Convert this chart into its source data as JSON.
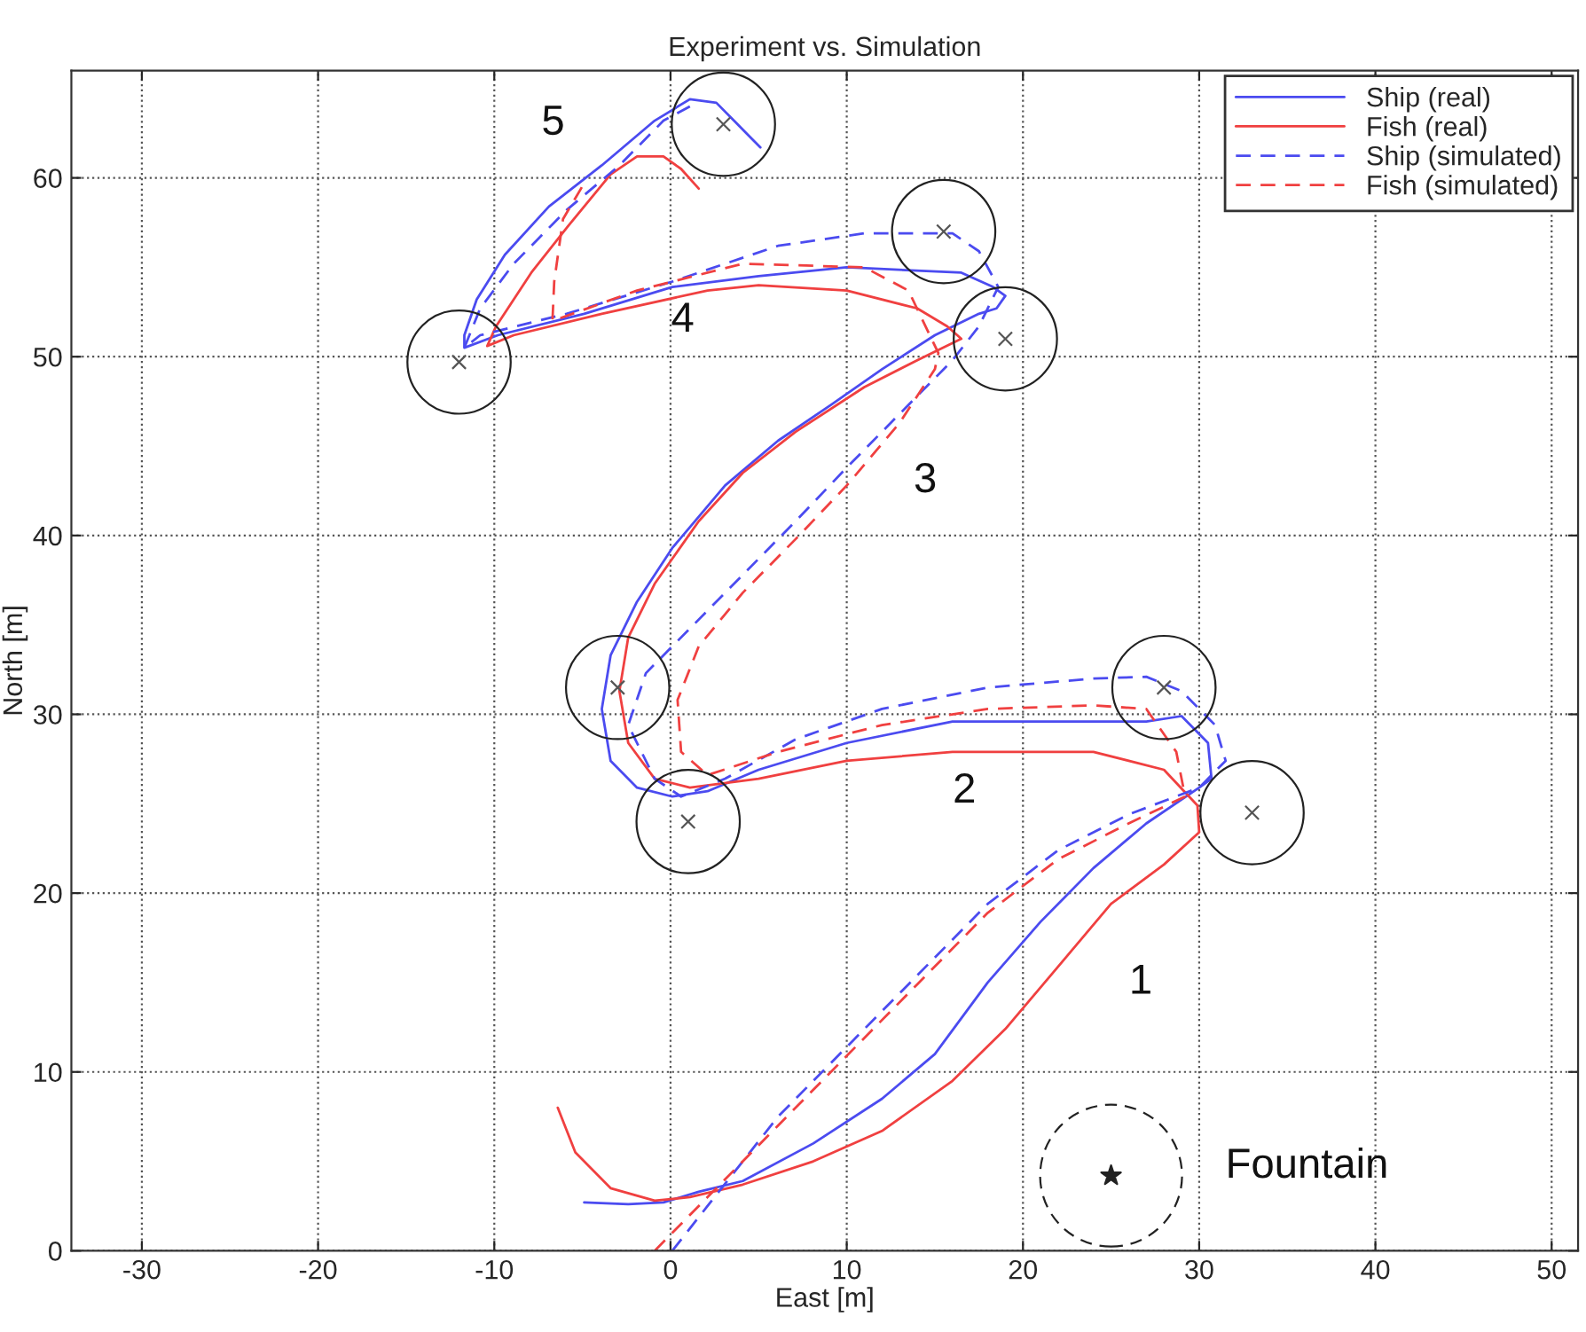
{
  "chart_data": {
    "type": "line",
    "title": "Experiment vs. Simulation",
    "xlabel": "East [m]",
    "ylabel": "North [m]",
    "xlim": [
      -34,
      51.5
    ],
    "ylim": [
      0,
      66
    ],
    "xticks": [
      -30,
      -20,
      -10,
      0,
      10,
      20,
      30,
      40,
      50
    ],
    "yticks": [
      0,
      10,
      20,
      30,
      40,
      50,
      60
    ],
    "grid": true,
    "legend": "top right",
    "series": [
      {
        "name": "Ship (real)",
        "color": "#4b4bf0",
        "line_style": "solid",
        "x": [
          -4.9,
          -2.4,
          -0.4,
          1.6,
          4.1,
          8.1,
          12,
          15,
          18,
          21,
          24,
          27,
          30,
          30.7,
          30.5,
          29,
          27,
          16,
          10,
          5,
          2.1,
          0.1,
          -1.9,
          -3.4,
          -3.9,
          -3.4,
          -1.9,
          0.1,
          3.1,
          6.1,
          9.1,
          12,
          15,
          17.5,
          18.5,
          19,
          18.3,
          16.5,
          10,
          5,
          0.1,
          -4.9,
          -9.8,
          -11.7,
          -11.7,
          -11,
          -9.4,
          -6.9,
          -3.9,
          -0.9,
          1.1,
          2.6,
          3.6,
          4.6,
          5.1
        ],
        "values": [
          2.7,
          2.6,
          2.7,
          3.3,
          3.9,
          6,
          8.5,
          11,
          15,
          18.4,
          21.4,
          23.9,
          25.9,
          26.4,
          28.4,
          29.9,
          29.6,
          29.6,
          28.4,
          26.9,
          25.7,
          25.4,
          25.9,
          27.4,
          30.3,
          33.3,
          36.3,
          39.3,
          42.8,
          45.3,
          47.3,
          49.3,
          51.2,
          52.4,
          52.7,
          53.4,
          53.9,
          54.7,
          55,
          54.5,
          53.9,
          52.4,
          51.2,
          50.5,
          51.2,
          53.2,
          55.7,
          58.4,
          60.7,
          63.2,
          64.4,
          64.2,
          63.2,
          62.2,
          61.7
        ]
      },
      {
        "name": "Fish (real)",
        "color": "#f04040",
        "line_style": "solid",
        "x": [
          -6.4,
          -5.4,
          -3.4,
          -0.9,
          1.1,
          4.1,
          8.1,
          12,
          16,
          19,
          22,
          25,
          28,
          30,
          29.9,
          28,
          24,
          16,
          10,
          5,
          1.1,
          -0.9,
          -2.4,
          -2.9,
          -2.4,
          -0.9,
          1.6,
          4.1,
          7.1,
          11,
          14,
          16.5,
          15.7,
          14,
          10,
          5,
          2.1,
          -3.9,
          -8.9,
          -10.4,
          -9.9,
          -7.9,
          -5.9,
          -3.4,
          -1.9,
          -0.4,
          0.6,
          1.6
        ],
        "values": [
          8,
          5.5,
          3.5,
          2.8,
          3,
          3.7,
          5,
          6.7,
          9.5,
          12.4,
          15.9,
          19.4,
          21.6,
          23.4,
          24.9,
          26.9,
          27.9,
          27.9,
          27.4,
          26.4,
          25.9,
          26.4,
          28.4,
          31.3,
          34.3,
          37.3,
          40.8,
          43.5,
          45.8,
          48.3,
          49.8,
          51,
          51.7,
          52.7,
          53.7,
          54,
          53.7,
          52.4,
          51.2,
          50.6,
          51.7,
          54.7,
          57.2,
          60.2,
          61.2,
          61.2,
          60.5,
          59.4
        ]
      },
      {
        "name": "Ship (simulated)",
        "color": "#4b4bf0",
        "line_style": "dashed",
        "x": [
          0.1,
          2.1,
          6.1,
          10,
          14,
          18,
          22,
          26,
          30,
          31.5,
          30.9,
          29,
          27,
          24,
          18,
          12,
          7.1,
          3.1,
          0.6,
          -0.9,
          -2.4,
          -1.4,
          1.1,
          4.1,
          7.1,
          10,
          13,
          16,
          17.5,
          18.6,
          17.5,
          16,
          15,
          11,
          6.1,
          0.1,
          -5.9,
          -10.8,
          -11.7,
          -10.8,
          -8.9,
          -5.9,
          -2.9,
          -0.4,
          1.1
        ],
        "values": [
          0,
          2.5,
          7.5,
          11.4,
          15.4,
          19.4,
          22.4,
          24.4,
          25.9,
          27.4,
          29.4,
          31.3,
          32.1,
          32,
          31.5,
          30.3,
          28.6,
          26.4,
          25.4,
          26.4,
          29.4,
          32.3,
          34.8,
          37.8,
          40.8,
          43.8,
          46.8,
          49.8,
          51.7,
          53.9,
          55.9,
          56.9,
          56.9,
          56.9,
          56.2,
          54.2,
          52.4,
          51.2,
          50.5,
          52.7,
          55.2,
          58.2,
          60.7,
          63.2,
          64
        ]
      },
      {
        "name": "Fish (simulated)",
        "color": "#f04040",
        "line_style": "dashed",
        "x": [
          -0.9,
          1.6,
          6.1,
          10,
          14,
          18,
          22,
          26,
          29.2,
          28.7,
          27,
          24,
          18,
          12,
          6.1,
          2.1,
          0.6,
          0.4,
          1.6,
          4.1,
          7.1,
          10,
          13,
          15,
          15.2,
          13.5,
          11,
          4.1,
          -1.9,
          -6.7,
          -6.6,
          -6.1,
          -4.9
        ],
        "values": [
          0,
          2.5,
          7,
          10.9,
          14.9,
          18.9,
          21.9,
          23.9,
          25.4,
          27.9,
          30.3,
          30.5,
          30.3,
          29.4,
          27.9,
          26.6,
          27.9,
          30.8,
          33.8,
          36.8,
          39.8,
          42.8,
          46.3,
          49.3,
          50.2,
          53.7,
          55,
          55.2,
          53.7,
          52,
          54.2,
          57.7,
          59.7
        ]
      },
      {
        "type": "bubble",
        "color": "#222222",
        "line_style": "solid",
        "x": [
          33,
          28,
          1,
          -3,
          19,
          15.5,
          -12,
          3
        ],
        "values": [
          24.5,
          31.5,
          24,
          31.5,
          51,
          57,
          49.7,
          63
        ],
        "sizes": [
          1,
          1,
          1,
          1,
          1,
          1,
          1,
          1
        ]
      },
      {
        "type": "scatter",
        "marker": "cross",
        "color": "#555555",
        "x": [
          33,
          28,
          1,
          -3,
          19,
          15.5,
          -12,
          3
        ],
        "values": [
          24.5,
          31.5,
          24,
          31.5,
          51,
          57,
          49.7,
          63
        ]
      },
      {
        "type": "scatter",
        "marker": "star",
        "color": "#222222",
        "x": [
          25
        ],
        "values": [
          4.2
        ]
      }
    ],
    "annotations": [
      "1",
      "2",
      "3",
      "4",
      "5",
      "Fountain"
    ]
  }
}
